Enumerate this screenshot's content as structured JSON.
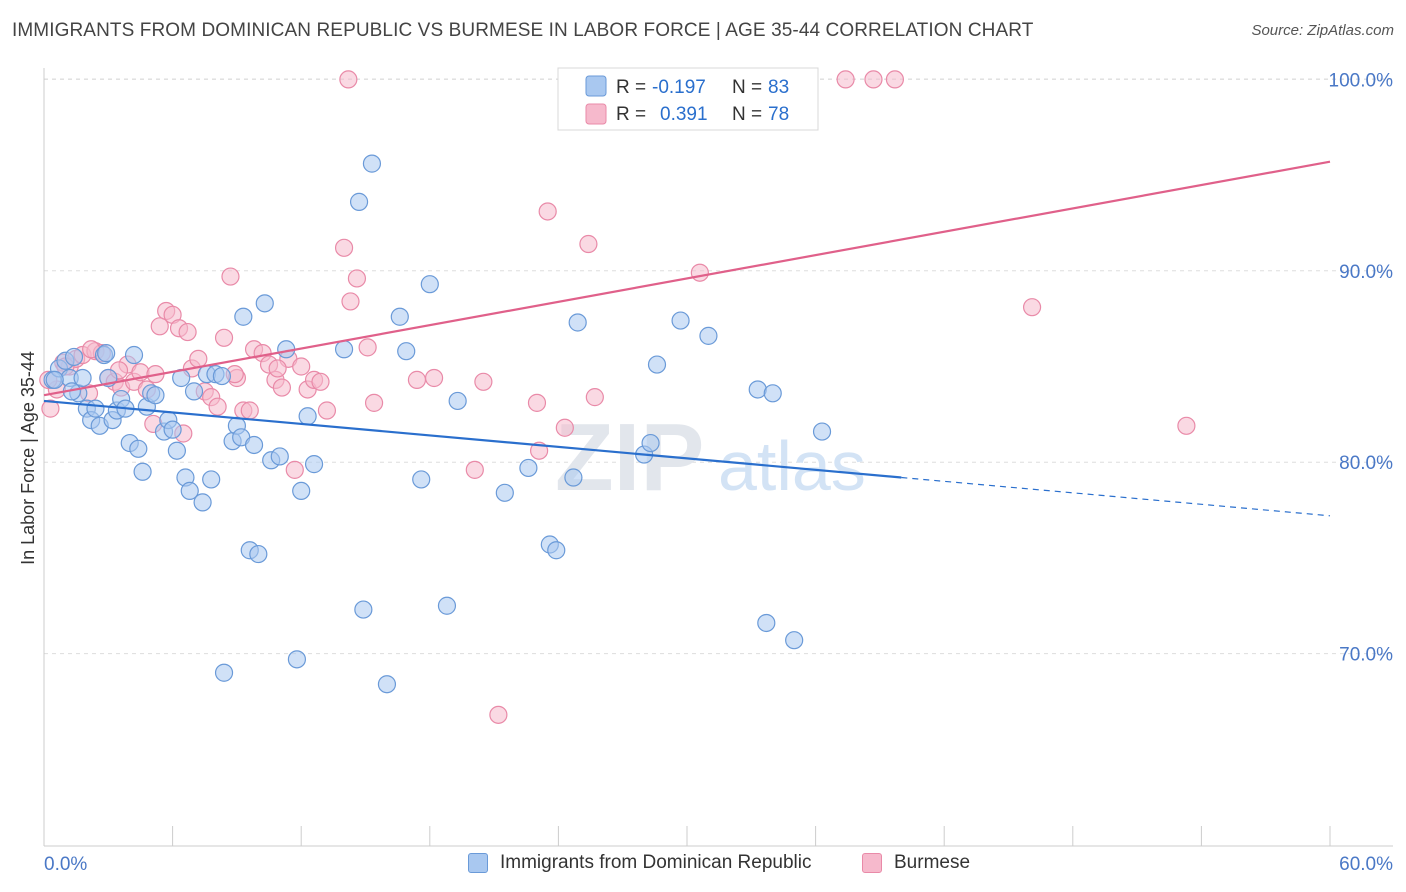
{
  "title": "IMMIGRANTS FROM DOMINICAN REPUBLIC VS BURMESE IN LABOR FORCE | AGE 35-44 CORRELATION CHART",
  "source": "Source: ZipAtlas.com",
  "watermark": {
    "zip": "ZIP",
    "atlas": "atlas"
  },
  "colors": {
    "blue_fill": "#a9c8f0",
    "blue_stroke": "#6a9ad8",
    "blue_line": "#2a6fcd",
    "pink_fill": "#f6b9cc",
    "pink_stroke": "#e98aa8",
    "pink_line": "#e0608a",
    "axis_label": "#4a78c6",
    "grid": "#dddddd"
  },
  "legend_stats": [
    {
      "r_label": "R =",
      "r_value": "-0.197",
      "n_label": "N =",
      "n_value": "83"
    },
    {
      "r_label": "R =",
      "r_value": "0.391",
      "n_label": "N =",
      "n_value": "78"
    }
  ],
  "chart_data": {
    "type": "scatter",
    "title": "IMMIGRANTS FROM DOMINICAN REPUBLIC VS BURMESE IN LABOR FORCE | AGE 35-44 CORRELATION CHART",
    "xlabel": "",
    "ylabel": "In Labor Force | Age 35-44",
    "xlim": [
      0,
      60
    ],
    "ylim": [
      60,
      101
    ],
    "x_tick_labels": [
      "0.0%",
      "60.0%"
    ],
    "y_ticks": [
      70,
      80,
      90,
      100
    ],
    "y_tick_labels": [
      "70.0%",
      "80.0%",
      "90.0%",
      "100.0%"
    ],
    "grid": true,
    "legend_position": "top-center",
    "series": [
      {
        "name": "Immigrants from Dominican Republic",
        "color": "#a9c8f0",
        "trend": {
          "x0": 0,
          "y0": 83.2,
          "x1": 40,
          "y1": 79.2,
          "dashed_to_x": 60,
          "dashed_to_y": 77.2
        },
        "points": [
          [
            0.4,
            84.3
          ],
          [
            0.7,
            84.9
          ],
          [
            1.0,
            85.3
          ],
          [
            1.2,
            84.4
          ],
          [
            1.4,
            85.5
          ],
          [
            1.6,
            83.6
          ],
          [
            1.8,
            84.4
          ],
          [
            2.0,
            82.8
          ],
          [
            2.2,
            82.2
          ],
          [
            2.4,
            82.8
          ],
          [
            2.6,
            81.9
          ],
          [
            2.8,
            85.6
          ],
          [
            3.0,
            84.4
          ],
          [
            3.2,
            82.2
          ],
          [
            3.4,
            82.7
          ],
          [
            3.6,
            83.3
          ],
          [
            3.8,
            82.8
          ],
          [
            4.0,
            81.0
          ],
          [
            4.2,
            85.6
          ],
          [
            4.4,
            80.7
          ],
          [
            4.6,
            79.5
          ],
          [
            4.8,
            82.9
          ],
          [
            5.0,
            83.6
          ],
          [
            5.2,
            83.5
          ],
          [
            5.6,
            81.6
          ],
          [
            5.8,
            82.2
          ],
          [
            6.0,
            81.7
          ],
          [
            6.2,
            80.6
          ],
          [
            6.4,
            84.4
          ],
          [
            6.6,
            79.2
          ],
          [
            6.8,
            78.5
          ],
          [
            7.0,
            83.7
          ],
          [
            7.4,
            77.9
          ],
          [
            7.6,
            84.6
          ],
          [
            7.8,
            79.1
          ],
          [
            8.0,
            84.6
          ],
          [
            8.3,
            84.5
          ],
          [
            8.4,
            69.0
          ],
          [
            8.8,
            81.1
          ],
          [
            9.0,
            81.9
          ],
          [
            9.2,
            81.3
          ],
          [
            9.3,
            87.6
          ],
          [
            9.8,
            80.9
          ],
          [
            9.6,
            75.4
          ],
          [
            10.0,
            75.2
          ],
          [
            10.3,
            88.3
          ],
          [
            10.6,
            80.1
          ],
          [
            11.0,
            80.3
          ],
          [
            11.3,
            85.9
          ],
          [
            11.8,
            69.7
          ],
          [
            12.0,
            78.5
          ],
          [
            12.3,
            82.4
          ],
          [
            12.6,
            79.9
          ],
          [
            14.0,
            85.9
          ],
          [
            14.7,
            93.6
          ],
          [
            14.9,
            72.3
          ],
          [
            15.3,
            95.6
          ],
          [
            16.0,
            68.4
          ],
          [
            16.6,
            87.6
          ],
          [
            16.9,
            85.8
          ],
          [
            17.6,
            79.1
          ],
          [
            18.0,
            89.3
          ],
          [
            18.8,
            72.5
          ],
          [
            19.3,
            83.2
          ],
          [
            21.5,
            78.4
          ],
          [
            22.6,
            79.7
          ],
          [
            23.6,
            75.7
          ],
          [
            23.9,
            75.4
          ],
          [
            24.7,
            79.2
          ],
          [
            24.9,
            87.3
          ],
          [
            28.0,
            80.4
          ],
          [
            28.3,
            81.0
          ],
          [
            28.6,
            85.1
          ],
          [
            29.7,
            87.4
          ],
          [
            31.0,
            86.6
          ],
          [
            33.3,
            83.8
          ],
          [
            33.7,
            71.6
          ],
          [
            34.0,
            83.6
          ],
          [
            35.0,
            70.7
          ],
          [
            36.3,
            81.6
          ],
          [
            0.5,
            84.3
          ],
          [
            1.3,
            83.7
          ],
          [
            2.9,
            85.7
          ]
        ]
      },
      {
        "name": "Burmese",
        "color": "#f6b9cc",
        "trend": {
          "x0": 0,
          "y0": 83.5,
          "x1": 60,
          "y1": 95.7
        },
        "points": [
          [
            0.3,
            82.8
          ],
          [
            0.6,
            83.8
          ],
          [
            0.9,
            85.2
          ],
          [
            1.2,
            85.0
          ],
          [
            1.5,
            85.4
          ],
          [
            1.8,
            85.6
          ],
          [
            2.1,
            83.6
          ],
          [
            2.4,
            85.8
          ],
          [
            2.7,
            85.7
          ],
          [
            3.0,
            84.4
          ],
          [
            3.3,
            84.2
          ],
          [
            3.6,
            83.9
          ],
          [
            3.9,
            85.1
          ],
          [
            4.2,
            84.2
          ],
          [
            4.5,
            84.7
          ],
          [
            4.8,
            83.8
          ],
          [
            5.1,
            82.0
          ],
          [
            5.4,
            87.1
          ],
          [
            5.7,
            87.9
          ],
          [
            6.0,
            87.7
          ],
          [
            6.3,
            87.0
          ],
          [
            6.5,
            81.5
          ],
          [
            6.9,
            84.9
          ],
          [
            7.2,
            85.4
          ],
          [
            7.5,
            83.7
          ],
          [
            7.8,
            83.4
          ],
          [
            8.1,
            82.9
          ],
          [
            8.4,
            86.5
          ],
          [
            8.7,
            89.7
          ],
          [
            9.0,
            84.4
          ],
          [
            9.3,
            82.7
          ],
          [
            9.6,
            82.7
          ],
          [
            9.8,
            85.9
          ],
          [
            10.2,
            85.7
          ],
          [
            10.5,
            85.1
          ],
          [
            10.8,
            84.3
          ],
          [
            11.1,
            83.9
          ],
          [
            11.4,
            85.4
          ],
          [
            11.7,
            79.6
          ],
          [
            12.0,
            85.0
          ],
          [
            12.3,
            83.8
          ],
          [
            12.6,
            84.3
          ],
          [
            12.9,
            84.2
          ],
          [
            13.2,
            82.7
          ],
          [
            14.0,
            91.2
          ],
          [
            14.3,
            88.4
          ],
          [
            14.6,
            89.6
          ],
          [
            15.1,
            86.0
          ],
          [
            15.4,
            83.1
          ],
          [
            14.2,
            100.0
          ],
          [
            17.4,
            84.3
          ],
          [
            18.2,
            84.4
          ],
          [
            20.1,
            79.6
          ],
          [
            20.5,
            84.2
          ],
          [
            21.2,
            66.8
          ],
          [
            23.0,
            83.1
          ],
          [
            23.1,
            80.6
          ],
          [
            23.5,
            93.1
          ],
          [
            24.3,
            81.8
          ],
          [
            24.9,
            100.0
          ],
          [
            25.4,
            91.4
          ],
          [
            25.7,
            83.4
          ],
          [
            30.0,
            100.0
          ],
          [
            30.6,
            89.9
          ],
          [
            37.4,
            100.0
          ],
          [
            38.7,
            100.0
          ],
          [
            39.7,
            100.0
          ],
          [
            46.1,
            88.1
          ],
          [
            53.3,
            81.9
          ],
          [
            25.0,
            100.0
          ],
          [
            0.2,
            84.3
          ],
          [
            1.0,
            85.0
          ],
          [
            2.2,
            85.9
          ],
          [
            3.5,
            84.8
          ],
          [
            5.2,
            84.6
          ],
          [
            6.7,
            86.8
          ],
          [
            8.9,
            84.6
          ],
          [
            10.9,
            84.9
          ]
        ]
      }
    ]
  }
}
